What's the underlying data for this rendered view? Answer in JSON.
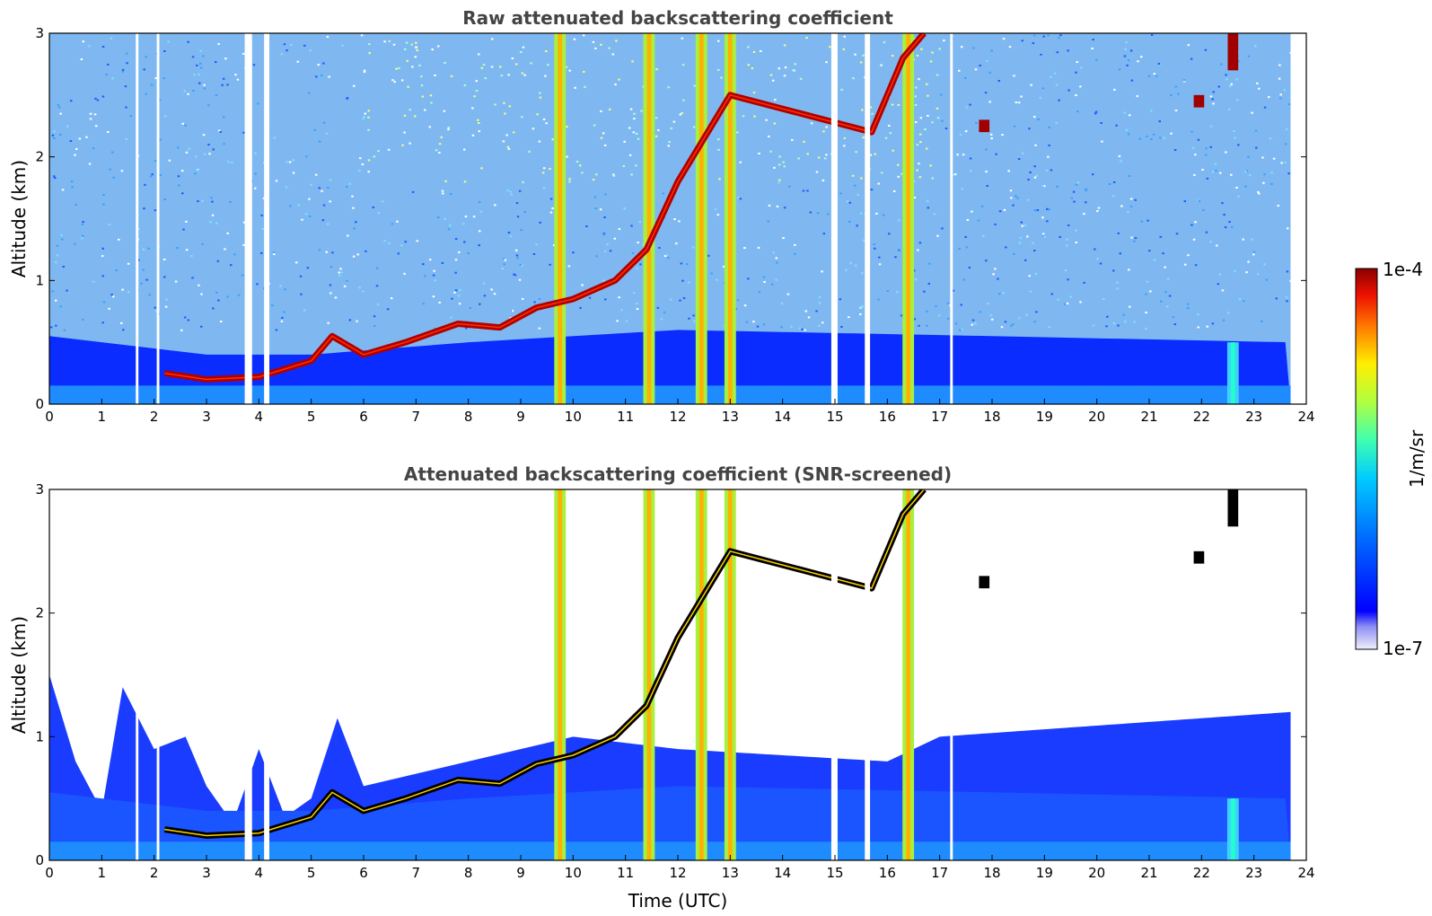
{
  "chart_data": [
    {
      "type": "heatmap",
      "title": "Raw attenuated backscattering coefficient",
      "xlabel": "",
      "ylabel": "Altitude (km)",
      "xlim": [
        0,
        24
      ],
      "ylim": [
        0,
        3
      ],
      "x_ticks": [
        "0",
        "1",
        "2",
        "3",
        "4",
        "5",
        "6",
        "7",
        "8",
        "9",
        "10",
        "11",
        "12",
        "13",
        "14",
        "15",
        "16",
        "17",
        "18",
        "19",
        "20",
        "21",
        "22",
        "23",
        "24"
      ],
      "y_ticks": [
        "0",
        "1",
        "2",
        "3"
      ],
      "data_end_time": 23.7,
      "blank_time_intervals": [
        [
          1.65,
          1.7
        ],
        [
          2.05,
          2.1
        ],
        [
          3.73,
          3.87
        ],
        [
          4.1,
          4.2
        ],
        [
          14.93,
          15.05
        ],
        [
          15.57,
          15.67
        ],
        [
          17.2,
          17.25
        ]
      ],
      "boundary_layer_top": [
        {
          "time": 0,
          "altitude": 0.55
        },
        {
          "time": 2,
          "altitude": 0.45
        },
        {
          "time": 3,
          "altitude": 0.4
        },
        {
          "time": 5,
          "altitude": 0.4
        },
        {
          "time": 8,
          "altitude": 0.5
        },
        {
          "time": 12,
          "altitude": 0.6
        },
        {
          "time": 18,
          "altitude": 0.55
        },
        {
          "time": 23.7,
          "altitude": 0.5
        }
      ],
      "cloud_layer_base": [
        {
          "time": 2.2,
          "altitude": 0.25
        },
        {
          "time": 3.0,
          "altitude": 0.2
        },
        {
          "time": 4.0,
          "altitude": 0.22
        },
        {
          "time": 5.0,
          "altitude": 0.35
        },
        {
          "time": 5.4,
          "altitude": 0.55
        },
        {
          "time": 6.0,
          "altitude": 0.4
        },
        {
          "time": 6.8,
          "altitude": 0.5
        },
        {
          "time": 7.8,
          "altitude": 0.65
        },
        {
          "time": 8.6,
          "altitude": 0.62
        },
        {
          "time": 9.3,
          "altitude": 0.78
        },
        {
          "time": 10.0,
          "altitude": 0.85
        },
        {
          "time": 10.8,
          "altitude": 1.0
        },
        {
          "time": 11.4,
          "altitude": 1.25
        },
        {
          "time": 12.0,
          "altitude": 1.8
        },
        {
          "time": 13.0,
          "altitude": 2.5
        },
        {
          "time": 15.7,
          "altitude": 2.2
        },
        {
          "time": 16.3,
          "altitude": 2.8
        },
        {
          "time": 16.7,
          "altitude": 3.0
        }
      ],
      "precipitation_shafts": [
        {
          "time": 9.75,
          "max_altitude": 3.0,
          "level": "high"
        },
        {
          "time": 11.45,
          "max_altitude": 3.0,
          "level": "high"
        },
        {
          "time": 12.45,
          "max_altitude": 3.0,
          "level": "high"
        },
        {
          "time": 13.0,
          "max_altitude": 3.0,
          "level": "high"
        },
        {
          "time": 16.4,
          "max_altitude": 3.0,
          "level": "high"
        },
        {
          "time": 22.6,
          "max_altitude": 0.5,
          "level": "moderate"
        }
      ],
      "elevated_features": [
        {
          "time": 22.6,
          "altitude_range": [
            2.7,
            3.0
          ],
          "level": "very high"
        },
        {
          "time": 21.95,
          "altitude_range": [
            2.4,
            2.5
          ],
          "level": "very high"
        },
        {
          "time": 17.85,
          "altitude_range": [
            2.2,
            2.3
          ],
          "level": "very high"
        }
      ]
    },
    {
      "type": "heatmap",
      "title": "Attenuated backscattering coefficient (SNR-screened)",
      "xlabel": "Time (UTC)",
      "ylabel": "Altitude (km)",
      "xlim": [
        0,
        24
      ],
      "ylim": [
        0,
        3
      ],
      "x_ticks": [
        "0",
        "1",
        "2",
        "3",
        "4",
        "5",
        "6",
        "7",
        "8",
        "9",
        "10",
        "11",
        "12",
        "13",
        "14",
        "15",
        "16",
        "17",
        "18",
        "19",
        "20",
        "21",
        "22",
        "23",
        "24"
      ],
      "y_ticks": [
        "0",
        "1",
        "2",
        "3"
      ],
      "screened_signal_top": [
        {
          "time": 0,
          "altitude": 1.5
        },
        {
          "time": 0.5,
          "altitude": 0.8
        },
        {
          "time": 1.0,
          "altitude": 0.4
        },
        {
          "time": 1.4,
          "altitude": 1.4
        },
        {
          "time": 2.0,
          "altitude": 0.9
        },
        {
          "time": 2.6,
          "altitude": 1.0
        },
        {
          "time": 3.0,
          "altitude": 0.6
        },
        {
          "time": 3.5,
          "altitude": 0.3
        },
        {
          "time": 4.0,
          "altitude": 0.9
        },
        {
          "time": 4.5,
          "altitude": 0.35
        },
        {
          "time": 5.0,
          "altitude": 0.5
        },
        {
          "time": 5.5,
          "altitude": 1.15
        },
        {
          "time": 6.0,
          "altitude": 0.6
        },
        {
          "time": 8.0,
          "altitude": 0.8
        },
        {
          "time": 10.0,
          "altitude": 1.0
        },
        {
          "time": 12.0,
          "altitude": 0.9
        },
        {
          "time": 16.0,
          "altitude": 0.8
        },
        {
          "time": 17.0,
          "altitude": 1.0
        },
        {
          "time": 23.7,
          "altitude": 1.2
        }
      ]
    }
  ],
  "colorbar": {
    "label": "1/m/sr",
    "max_label": "1e-4",
    "min_label": "1e-7",
    "scale": "log",
    "colors": [
      "#e6e6f5",
      "#b8b8f0",
      "#9c9cf0",
      "#0000ff",
      "#0033ff",
      "#0066ff",
      "#0099ff",
      "#00ccff",
      "#00e0e0",
      "#33ffcc",
      "#66ff99",
      "#99ff66",
      "#ccff33",
      "#ffff00",
      "#ffcc00",
      "#ff9900",
      "#ff6600",
      "#ff3300",
      "#dd0000",
      "#990000"
    ]
  }
}
